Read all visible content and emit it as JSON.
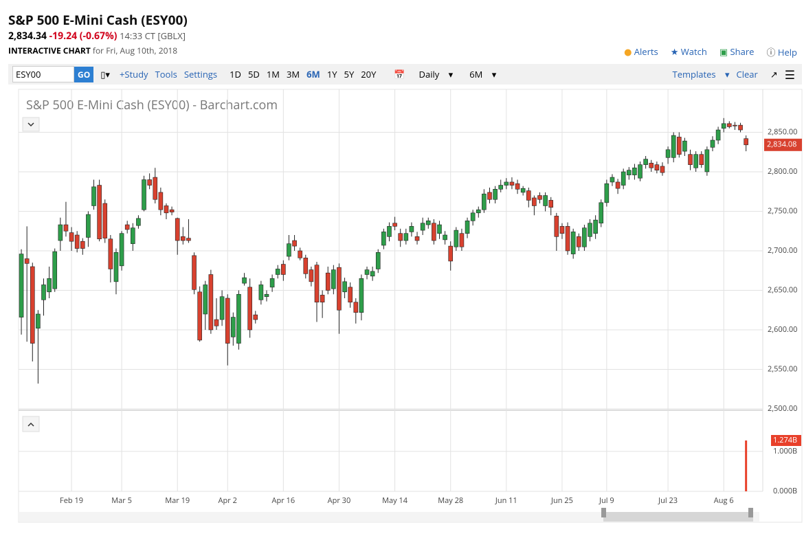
{
  "header": {
    "title": "S&P 500 E-Mini Cash (ESY00)",
    "price": "2,834.34",
    "change": "-19.24 (-0.67%)",
    "time": "14:33 CT [GBLX]",
    "chart_label": "INTERACTIVE CHART",
    "chart_date": "for Fri, Aug 10th, 2018",
    "actions": [
      "Alerts",
      "Watch",
      "Share",
      "Help"
    ]
  },
  "toolbar": {
    "symbol": "ESY00",
    "go": "GO",
    "links": [
      "+Study",
      "Tools",
      "Settings"
    ],
    "periods": [
      "1D",
      "5D",
      "1M",
      "3M",
      "6M",
      "1Y",
      "5Y",
      "20Y"
    ],
    "active_period": "6M",
    "interval": "Daily",
    "range": "6M",
    "templates": "Templates",
    "clear": "Clear"
  },
  "chart_data": {
    "type": "candlestick",
    "title": "S&P 500 E-Mini Cash (ESY00) - Barchart.com",
    "up_color": "#2e9e4a",
    "down_color": "#d8412f",
    "grid": true,
    "xlim": [
      -0.5,
      133
    ],
    "xticks": [
      {
        "value": 9,
        "label": "Feb 19"
      },
      {
        "value": 18,
        "label": "Mar 5"
      },
      {
        "value": 28,
        "label": "Mar 19"
      },
      {
        "value": 37,
        "label": "Apr 2"
      },
      {
        "value": 47,
        "label": "Apr 16"
      },
      {
        "value": 57,
        "label": "Apr 30"
      },
      {
        "value": 67,
        "label": "May 14"
      },
      {
        "value": 77,
        "label": "May 28"
      },
      {
        "value": 87,
        "label": "Jun 11"
      },
      {
        "value": 97,
        "label": "Jun 25"
      },
      {
        "value": 105,
        "label": "Jul 9"
      },
      {
        "value": 116,
        "label": "Jul 23"
      },
      {
        "value": 126,
        "label": "Aug 6"
      }
    ],
    "ylim": [
      2500,
      2900
    ],
    "yticks": [
      {
        "value": 2500,
        "label": "2,500.00"
      },
      {
        "value": 2550,
        "label": "2,550.00"
      },
      {
        "value": 2600,
        "label": "2,600.00"
      },
      {
        "value": 2650,
        "label": "2,650.00"
      },
      {
        "value": 2700,
        "label": "2,700.00"
      },
      {
        "value": 2750,
        "label": "2,750.00"
      },
      {
        "value": 2800,
        "label": "2,800.00"
      },
      {
        "value": 2850,
        "label": "2,850.00"
      }
    ],
    "last_price": {
      "value": 2834.08,
      "label": "2,834.08"
    },
    "ohlc": [
      [
        2616,
        2702,
        2594,
        2696
      ],
      [
        2690,
        2731,
        2585,
        2684
      ],
      [
        2680,
        2685,
        2560,
        2583
      ],
      [
        2602,
        2625,
        2532,
        2620
      ],
      [
        2638,
        2665,
        2618,
        2657
      ],
      [
        2648,
        2680,
        2640,
        2665
      ],
      [
        2652,
        2703,
        2648,
        2699
      ],
      [
        2713,
        2742,
        2700,
        2733
      ],
      [
        2733,
        2762,
        2718,
        2725
      ],
      [
        2723,
        2730,
        2700,
        2712
      ],
      [
        2720,
        2725,
        2698,
        2703
      ],
      [
        2712,
        2716,
        2695,
        2703
      ],
      [
        2717,
        2750,
        2705,
        2746
      ],
      [
        2757,
        2790,
        2752,
        2781
      ],
      [
        2783,
        2790,
        2712,
        2715
      ],
      [
        2760,
        2765,
        2710,
        2716
      ],
      [
        2715,
        2720,
        2660,
        2677
      ],
      [
        2661,
        2703,
        2645,
        2698
      ],
      [
        2681,
        2725,
        2675,
        2722
      ],
      [
        2733,
        2738,
        2722,
        2727
      ],
      [
        2709,
        2735,
        2700,
        2729
      ],
      [
        2732,
        2745,
        2728,
        2741
      ],
      [
        2752,
        2795,
        2750,
        2790
      ],
      [
        2790,
        2798,
        2778,
        2783
      ],
      [
        2793,
        2805,
        2760,
        2765
      ],
      [
        2774,
        2780,
        2745,
        2752
      ],
      [
        2757,
        2760,
        2740,
        2748
      ],
      [
        2752,
        2756,
        2745,
        2749
      ],
      [
        2741,
        2742,
        2695,
        2713
      ],
      [
        2718,
        2730,
        2708,
        2713
      ],
      [
        2716,
        2740,
        2710,
        2713
      ],
      [
        2694,
        2698,
        2645,
        2651
      ],
      [
        2648,
        2655,
        2585,
        2587
      ],
      [
        2620,
        2662,
        2600,
        2657
      ],
      [
        2670,
        2676,
        2595,
        2600
      ],
      [
        2613,
        2640,
        2600,
        2605
      ],
      [
        2613,
        2650,
        2605,
        2642
      ],
      [
        2640,
        2645,
        2555,
        2583
      ],
      [
        2591,
        2622,
        2580,
        2616
      ],
      [
        2583,
        2650,
        2575,
        2645
      ],
      [
        2659,
        2672,
        2656,
        2666
      ],
      [
        2654,
        2665,
        2590,
        2600
      ],
      [
        2619,
        2624,
        2608,
        2613
      ],
      [
        2638,
        2662,
        2632,
        2657
      ],
      [
        2642,
        2650,
        2636,
        2645
      ],
      [
        2654,
        2670,
        2648,
        2665
      ],
      [
        2670,
        2682,
        2665,
        2677
      ],
      [
        2683,
        2688,
        2662,
        2670
      ],
      [
        2693,
        2720,
        2688,
        2709
      ],
      [
        2713,
        2720,
        2700,
        2706
      ],
      [
        2700,
        2704,
        2688,
        2691
      ],
      [
        2691,
        2695,
        2665,
        2671
      ],
      [
        2676,
        2680,
        2655,
        2661
      ],
      [
        2682,
        2686,
        2610,
        2635
      ],
      [
        2644,
        2650,
        2615,
        2635
      ],
      [
        2672,
        2680,
        2645,
        2650
      ],
      [
        2652,
        2682,
        2645,
        2676
      ],
      [
        2679,
        2684,
        2595,
        2625
      ],
      [
        2648,
        2666,
        2640,
        2661
      ],
      [
        2654,
        2660,
        2628,
        2635
      ],
      [
        2635,
        2640,
        2608,
        2622
      ],
      [
        2622,
        2670,
        2612,
        2665
      ],
      [
        2670,
        2680,
        2664,
        2676
      ],
      [
        2668,
        2680,
        2662,
        2674
      ],
      [
        2677,
        2702,
        2672,
        2698
      ],
      [
        2707,
        2728,
        2702,
        2724
      ],
      [
        2718,
        2736,
        2712,
        2731
      ],
      [
        2735,
        2743,
        2726,
        2731
      ],
      [
        2722,
        2728,
        2705,
        2713
      ],
      [
        2713,
        2728,
        2708,
        2722
      ],
      [
        2724,
        2736,
        2718,
        2731
      ],
      [
        2718,
        2724,
        2708,
        2713
      ],
      [
        2726,
        2742,
        2720,
        2735
      ],
      [
        2733,
        2742,
        2728,
        2738
      ],
      [
        2735,
        2740,
        2708,
        2713
      ],
      [
        2722,
        2738,
        2715,
        2733
      ],
      [
        2714,
        2725,
        2708,
        2720
      ],
      [
        2706,
        2712,
        2675,
        2687
      ],
      [
        2705,
        2730,
        2700,
        2726
      ],
      [
        2722,
        2728,
        2700,
        2705
      ],
      [
        2722,
        2742,
        2716,
        2738
      ],
      [
        2738,
        2752,
        2732,
        2748
      ],
      [
        2748,
        2756,
        2742,
        2752
      ],
      [
        2752,
        2778,
        2748,
        2772
      ],
      [
        2774,
        2780,
        2760,
        2765
      ],
      [
        2765,
        2782,
        2760,
        2778
      ],
      [
        2778,
        2790,
        2774,
        2783
      ],
      [
        2783,
        2792,
        2778,
        2787
      ],
      [
        2787,
        2793,
        2778,
        2783
      ],
      [
        2785,
        2790,
        2772,
        2778
      ],
      [
        2774,
        2782,
        2770,
        2779
      ],
      [
        2776,
        2780,
        2755,
        2764
      ],
      [
        2767,
        2770,
        2745,
        2757
      ],
      [
        2770,
        2774,
        2760,
        2765
      ],
      [
        2757,
        2774,
        2750,
        2770
      ],
      [
        2764,
        2768,
        2745,
        2755
      ],
      [
        2744,
        2748,
        2700,
        2718
      ],
      [
        2731,
        2735,
        2715,
        2722
      ],
      [
        2731,
        2736,
        2695,
        2700
      ],
      [
        2696,
        2728,
        2690,
        2724
      ],
      [
        2718,
        2722,
        2700,
        2705
      ],
      [
        2705,
        2733,
        2700,
        2729
      ],
      [
        2718,
        2740,
        2712,
        2735
      ],
      [
        2722,
        2745,
        2715,
        2739
      ],
      [
        2735,
        2765,
        2730,
        2761
      ],
      [
        2761,
        2790,
        2756,
        2785
      ],
      [
        2787,
        2797,
        2782,
        2793
      ],
      [
        2787,
        2791,
        2772,
        2779
      ],
      [
        2783,
        2804,
        2778,
        2800
      ],
      [
        2796,
        2806,
        2790,
        2802
      ],
      [
        2796,
        2810,
        2790,
        2805
      ],
      [
        2792,
        2813,
        2788,
        2809
      ],
      [
        2809,
        2820,
        2804,
        2816
      ],
      [
        2811,
        2815,
        2800,
        2805
      ],
      [
        2809,
        2813,
        2798,
        2802
      ],
      [
        2807,
        2812,
        2795,
        2799
      ],
      [
        2818,
        2832,
        2810,
        2828
      ],
      [
        2818,
        2850,
        2812,
        2846
      ],
      [
        2844,
        2850,
        2818,
        2822
      ],
      [
        2826,
        2843,
        2820,
        2839
      ],
      [
        2822,
        2828,
        2802,
        2809
      ],
      [
        2805,
        2826,
        2800,
        2822
      ],
      [
        2822,
        2826,
        2805,
        2809
      ],
      [
        2800,
        2832,
        2795,
        2828
      ],
      [
        2831,
        2845,
        2826,
        2840
      ],
      [
        2840,
        2857,
        2835,
        2853
      ],
      [
        2855,
        2868,
        2850,
        2861
      ],
      [
        2861,
        2864,
        2855,
        2857
      ],
      [
        2859,
        2863,
        2853,
        2858
      ],
      [
        2859,
        2862,
        2850,
        2853
      ],
      [
        2842,
        2846,
        2826,
        2834.08
      ]
    ],
    "volume": {
      "type": "bar",
      "color": "#e8402a",
      "x": [
        130
      ],
      "values": [
        1.274
      ],
      "value_labels": [
        "1.274B"
      ],
      "ylim": [
        0,
        1.98
      ],
      "yticks": [
        {
          "value": 0,
          "label": "0.000B"
        },
        {
          "value": 1,
          "label": "1.000B"
        }
      ]
    }
  }
}
